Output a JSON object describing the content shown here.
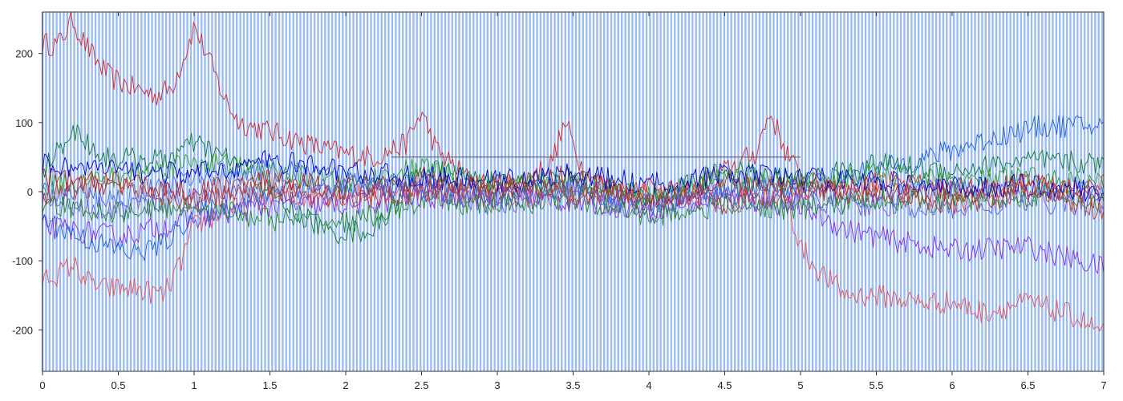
{
  "chart_data": {
    "type": "line",
    "title": "",
    "xlabel": "",
    "ylabel": "",
    "xlim": [
      0,
      7
    ],
    "ylim": [
      -260,
      260
    ],
    "grid": false,
    "legend": "none",
    "background": {
      "type": "vertical-line-pattern",
      "color": "#9bbcf0",
      "x_start": 0,
      "x_end": 7,
      "step": 0.0233
    },
    "reference_lines": [
      {
        "orientation": "horizontal",
        "y": 50,
        "x_start": 2.3,
        "x_end": 5.0,
        "color": "#555555"
      }
    ],
    "x_ticks": [
      {
        "value": 0,
        "label": "0"
      },
      {
        "value": 0.5,
        "label": "0.5"
      },
      {
        "value": 1,
        "label": "1"
      },
      {
        "value": 1.5,
        "label": "1.5"
      },
      {
        "value": 2,
        "label": "2"
      },
      {
        "value": 2.5,
        "label": "2.5"
      },
      {
        "value": 3,
        "label": "3"
      },
      {
        "value": 3.5,
        "label": "3.5"
      },
      {
        "value": 4,
        "label": "4"
      },
      {
        "value": 4.5,
        "label": "4.5"
      },
      {
        "value": 5,
        "label": "5"
      },
      {
        "value": 5.5,
        "label": "5.5"
      },
      {
        "value": 6,
        "label": "6"
      },
      {
        "value": 6.5,
        "label": "6.5"
      },
      {
        "value": 7,
        "label": "7"
      }
    ],
    "y_ticks": [
      {
        "value": 200,
        "label": "200"
      },
      {
        "value": 100,
        "label": "100"
      },
      {
        "value": 0,
        "label": "0"
      },
      {
        "value": -100,
        "label": "-100"
      },
      {
        "value": -200,
        "label": "-200"
      }
    ],
    "series": [
      {
        "color": "#d62728",
        "x": [
          0,
          0.1,
          0.2,
          0.25,
          0.35,
          0.45,
          0.6,
          0.75,
          0.85,
          0.95,
          1.0,
          1.1,
          1.2,
          1.3,
          1.45,
          1.6,
          1.8,
          2.0,
          2.2,
          2.4,
          2.5,
          2.6,
          2.8,
          3.0,
          3.2,
          3.35,
          3.45,
          3.55,
          3.7,
          3.9,
          4.1,
          4.3,
          4.5,
          4.7,
          4.8,
          4.9,
          5.0,
          5.1,
          5.3,
          5.5,
          5.7,
          6.0,
          6.3,
          6.5,
          6.8,
          7.0
        ],
        "y": [
          215,
          212,
          250,
          225,
          190,
          165,
          150,
          140,
          150,
          205,
          240,
          190,
          135,
          100,
          90,
          80,
          65,
          55,
          50,
          70,
          115,
          60,
          20,
          5,
          20,
          40,
          100,
          40,
          10,
          0,
          -10,
          5,
          30,
          55,
          115,
          60,
          20,
          10,
          5,
          15,
          10,
          5,
          8,
          10,
          5,
          10
        ]
      },
      {
        "color": "#e8505a",
        "x": [
          0,
          0.1,
          0.2,
          0.3,
          0.4,
          0.6,
          0.8,
          0.9,
          1.0,
          1.2,
          1.5,
          2.0,
          2.5,
          3.0,
          3.5,
          4.0,
          4.5,
          4.8,
          4.9,
          5.0,
          5.1,
          5.3,
          5.5,
          5.8,
          6.0,
          6.2,
          6.5,
          6.8,
          7.0
        ],
        "y": [
          -125,
          -120,
          -105,
          -130,
          -140,
          -140,
          -150,
          -110,
          -50,
          -30,
          -10,
          -5,
          5,
          -10,
          0,
          -5,
          0,
          10,
          -5,
          -80,
          -110,
          -150,
          -150,
          -160,
          -160,
          -175,
          -160,
          -180,
          -205
        ]
      },
      {
        "color": "#8a2be2",
        "x": [
          0,
          0.5,
          1.0,
          1.5,
          2.0,
          2.5,
          3.0,
          3.5,
          4.0,
          4.5,
          5.0,
          5.3,
          5.6,
          6.0,
          6.5,
          7.0
        ],
        "y": [
          -50,
          -65,
          -40,
          -20,
          -20,
          -10,
          -5,
          -15,
          -25,
          -10,
          -20,
          -55,
          -70,
          -85,
          -80,
          -110
        ]
      },
      {
        "color": "#1f5fd6",
        "x": [
          0,
          0.3,
          0.6,
          0.8,
          1.0,
          1.3,
          1.6,
          2.0,
          2.5,
          3.0,
          3.5,
          4.0,
          4.5,
          5.0,
          5.5,
          6.0,
          6.3,
          6.6,
          7.0
        ],
        "y": [
          -40,
          -70,
          -90,
          -75,
          -30,
          -20,
          10,
          0,
          15,
          -5,
          5,
          -15,
          0,
          10,
          30,
          60,
          80,
          95,
          95
        ]
      },
      {
        "color": "#0b7a2e",
        "x": [
          0,
          0.2,
          0.4,
          0.8,
          1.0,
          1.3,
          1.6,
          1.9,
          2.2,
          2.5,
          3.0,
          3.5,
          4.0,
          4.5,
          5.0,
          5.5,
          6.0,
          6.5,
          7.0
        ],
        "y": [
          30,
          90,
          50,
          45,
          70,
          40,
          -20,
          -60,
          -55,
          35,
          10,
          20,
          -10,
          30,
          15,
          40,
          30,
          45,
          40
        ]
      },
      {
        "color": "#2ca02c",
        "x": [
          0,
          0.5,
          1.0,
          1.5,
          2.0,
          2.5,
          3.0,
          3.5,
          4.0,
          4.5,
          5.0,
          5.5,
          6.0,
          6.5,
          7.0
        ],
        "y": [
          10,
          20,
          45,
          30,
          10,
          35,
          5,
          15,
          -5,
          20,
          10,
          25,
          15,
          20,
          10
        ]
      },
      {
        "color": "#4169e1",
        "x": [
          0,
          0.5,
          1.0,
          1.5,
          2.0,
          2.5,
          3.0,
          3.5,
          4.0,
          4.5,
          5.0,
          5.5,
          6.0,
          6.5,
          7.0
        ],
        "y": [
          0,
          -10,
          20,
          30,
          20,
          0,
          -10,
          10,
          -20,
          5,
          0,
          -10,
          10,
          -5,
          0
        ]
      },
      {
        "color": "#b22222",
        "x": [
          0,
          0.5,
          1.0,
          1.5,
          2.0,
          2.5,
          3.0,
          3.5,
          4.0,
          4.5,
          5.0,
          5.5,
          6.0,
          6.5,
          7.0
        ],
        "y": [
          20,
          10,
          0,
          15,
          5,
          20,
          0,
          25,
          -15,
          10,
          5,
          -5,
          0,
          10,
          -10
        ]
      },
      {
        "color": "#6a5acd",
        "x": [
          0,
          0.5,
          1.0,
          1.5,
          2.0,
          2.5,
          3.0,
          3.5,
          4.0,
          4.5,
          5.0,
          5.5,
          6.0,
          6.5,
          7.0
        ],
        "y": [
          -15,
          -25,
          -10,
          -5,
          10,
          5,
          -20,
          0,
          -30,
          -10,
          -15,
          -20,
          -25,
          -15,
          -20
        ]
      },
      {
        "color": "#228b22",
        "x": [
          0,
          0.5,
          1.0,
          1.5,
          2.0,
          2.5,
          3.0,
          3.5,
          4.0,
          4.5,
          5.0,
          5.5,
          6.0,
          6.5,
          7.0
        ],
        "y": [
          -20,
          -30,
          -20,
          -40,
          -45,
          -15,
          -20,
          -10,
          -35,
          -20,
          -25,
          -10,
          -15,
          -5,
          -15
        ]
      },
      {
        "color": "#0000cd",
        "x": [
          0,
          0.5,
          1.0,
          1.5,
          2.0,
          2.5,
          3.0,
          3.5,
          4.0,
          4.5,
          5.0,
          5.5,
          6.0,
          6.5,
          7.0
        ],
        "y": [
          40,
          30,
          25,
          45,
          30,
          20,
          15,
          25,
          10,
          25,
          20,
          15,
          5,
          10,
          0
        ]
      },
      {
        "color": "#c0392b",
        "x": [
          0,
          0.5,
          1.0,
          1.5,
          2.0,
          2.5,
          3.0,
          3.5,
          4.0,
          4.5,
          5.0,
          5.5,
          6.0,
          6.5,
          7.0
        ],
        "y": [
          -5,
          15,
          -15,
          5,
          -10,
          0,
          10,
          -5,
          5,
          -15,
          0,
          10,
          -20,
          0,
          -30
        ]
      }
    ]
  }
}
